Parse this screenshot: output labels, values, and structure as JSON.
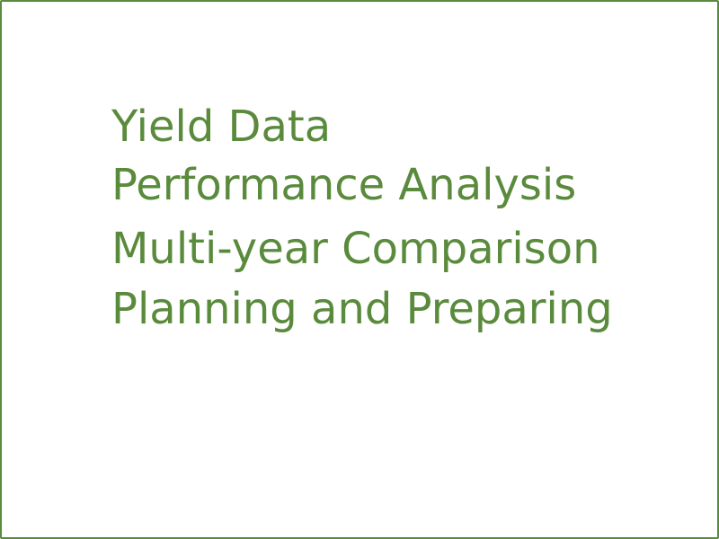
{
  "slide": {
    "accent_color": "#5a8a3c",
    "lines": [
      "Yield Data",
      "Performance Analysis",
      "Multi-year Comparison",
      "Planning and Preparing"
    ]
  }
}
